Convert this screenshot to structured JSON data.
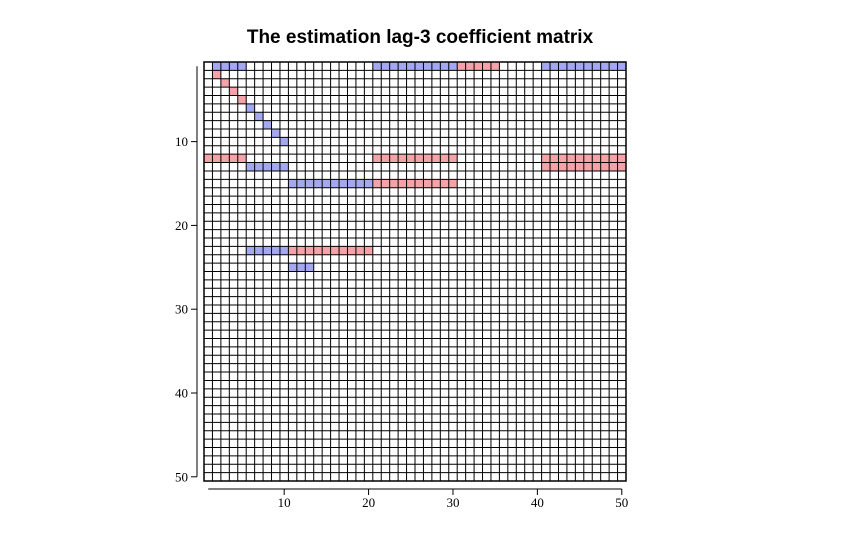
{
  "chart_data": {
    "type": "heatmap",
    "title": "The estimation lag-3 coefficient matrix",
    "xlabel": "",
    "ylabel": "",
    "rows": 50,
    "cols": 50,
    "xlim": [
      1,
      50
    ],
    "ylim": [
      1,
      50
    ],
    "y_axis_direction": "top-to-bottom",
    "x_ticks": [
      "10",
      "20",
      "30",
      "40",
      "50"
    ],
    "y_ticks": [
      "10",
      "20",
      "30",
      "40",
      "50"
    ],
    "grid": true,
    "cell_colors": {
      "positive": "#f5a3a8",
      "negative": "#a3a8f0",
      "zero": "#ffffff"
    },
    "cells": [
      {
        "row": 1,
        "col": 2,
        "sign": "negative"
      },
      {
        "row": 1,
        "col": 3,
        "sign": "negative"
      },
      {
        "row": 1,
        "col": 4,
        "sign": "negative"
      },
      {
        "row": 1,
        "col": 5,
        "sign": "negative"
      },
      {
        "row": 1,
        "col": 21,
        "sign": "negative"
      },
      {
        "row": 1,
        "col": 22,
        "sign": "negative"
      },
      {
        "row": 1,
        "col": 23,
        "sign": "negative"
      },
      {
        "row": 1,
        "col": 24,
        "sign": "negative"
      },
      {
        "row": 1,
        "col": 25,
        "sign": "negative"
      },
      {
        "row": 1,
        "col": 26,
        "sign": "negative"
      },
      {
        "row": 1,
        "col": 27,
        "sign": "negative"
      },
      {
        "row": 1,
        "col": 28,
        "sign": "negative"
      },
      {
        "row": 1,
        "col": 29,
        "sign": "negative"
      },
      {
        "row": 1,
        "col": 30,
        "sign": "negative"
      },
      {
        "row": 1,
        "col": 31,
        "sign": "positive"
      },
      {
        "row": 1,
        "col": 32,
        "sign": "positive"
      },
      {
        "row": 1,
        "col": 33,
        "sign": "positive"
      },
      {
        "row": 1,
        "col": 34,
        "sign": "positive"
      },
      {
        "row": 1,
        "col": 35,
        "sign": "positive"
      },
      {
        "row": 1,
        "col": 41,
        "sign": "negative"
      },
      {
        "row": 1,
        "col": 42,
        "sign": "negative"
      },
      {
        "row": 1,
        "col": 43,
        "sign": "negative"
      },
      {
        "row": 1,
        "col": 44,
        "sign": "negative"
      },
      {
        "row": 1,
        "col": 45,
        "sign": "negative"
      },
      {
        "row": 1,
        "col": 46,
        "sign": "negative"
      },
      {
        "row": 1,
        "col": 47,
        "sign": "negative"
      },
      {
        "row": 1,
        "col": 48,
        "sign": "negative"
      },
      {
        "row": 1,
        "col": 49,
        "sign": "negative"
      },
      {
        "row": 1,
        "col": 50,
        "sign": "negative"
      },
      {
        "row": 2,
        "col": 2,
        "sign": "positive"
      },
      {
        "row": 3,
        "col": 3,
        "sign": "positive"
      },
      {
        "row": 4,
        "col": 4,
        "sign": "positive"
      },
      {
        "row": 5,
        "col": 5,
        "sign": "positive"
      },
      {
        "row": 6,
        "col": 6,
        "sign": "negative"
      },
      {
        "row": 7,
        "col": 7,
        "sign": "negative"
      },
      {
        "row": 8,
        "col": 8,
        "sign": "negative"
      },
      {
        "row": 9,
        "col": 9,
        "sign": "negative"
      },
      {
        "row": 10,
        "col": 10,
        "sign": "negative"
      },
      {
        "row": 12,
        "col": 1,
        "sign": "positive"
      },
      {
        "row": 12,
        "col": 2,
        "sign": "positive"
      },
      {
        "row": 12,
        "col": 3,
        "sign": "positive"
      },
      {
        "row": 12,
        "col": 4,
        "sign": "positive"
      },
      {
        "row": 12,
        "col": 5,
        "sign": "positive"
      },
      {
        "row": 12,
        "col": 21,
        "sign": "positive"
      },
      {
        "row": 12,
        "col": 22,
        "sign": "positive"
      },
      {
        "row": 12,
        "col": 23,
        "sign": "positive"
      },
      {
        "row": 12,
        "col": 24,
        "sign": "positive"
      },
      {
        "row": 12,
        "col": 25,
        "sign": "positive"
      },
      {
        "row": 12,
        "col": 26,
        "sign": "positive"
      },
      {
        "row": 12,
        "col": 27,
        "sign": "positive"
      },
      {
        "row": 12,
        "col": 28,
        "sign": "positive"
      },
      {
        "row": 12,
        "col": 29,
        "sign": "positive"
      },
      {
        "row": 12,
        "col": 30,
        "sign": "positive"
      },
      {
        "row": 12,
        "col": 41,
        "sign": "positive"
      },
      {
        "row": 12,
        "col": 42,
        "sign": "positive"
      },
      {
        "row": 12,
        "col": 43,
        "sign": "positive"
      },
      {
        "row": 12,
        "col": 44,
        "sign": "positive"
      },
      {
        "row": 12,
        "col": 45,
        "sign": "positive"
      },
      {
        "row": 12,
        "col": 46,
        "sign": "positive"
      },
      {
        "row": 12,
        "col": 47,
        "sign": "positive"
      },
      {
        "row": 12,
        "col": 48,
        "sign": "positive"
      },
      {
        "row": 12,
        "col": 49,
        "sign": "positive"
      },
      {
        "row": 12,
        "col": 50,
        "sign": "positive"
      },
      {
        "row": 13,
        "col": 6,
        "sign": "negative"
      },
      {
        "row": 13,
        "col": 7,
        "sign": "negative"
      },
      {
        "row": 13,
        "col": 8,
        "sign": "negative"
      },
      {
        "row": 13,
        "col": 9,
        "sign": "negative"
      },
      {
        "row": 13,
        "col": 10,
        "sign": "negative"
      },
      {
        "row": 13,
        "col": 41,
        "sign": "positive"
      },
      {
        "row": 13,
        "col": 42,
        "sign": "positive"
      },
      {
        "row": 13,
        "col": 43,
        "sign": "positive"
      },
      {
        "row": 13,
        "col": 44,
        "sign": "positive"
      },
      {
        "row": 13,
        "col": 45,
        "sign": "positive"
      },
      {
        "row": 13,
        "col": 46,
        "sign": "positive"
      },
      {
        "row": 13,
        "col": 47,
        "sign": "positive"
      },
      {
        "row": 13,
        "col": 48,
        "sign": "positive"
      },
      {
        "row": 13,
        "col": 49,
        "sign": "positive"
      },
      {
        "row": 13,
        "col": 50,
        "sign": "positive"
      },
      {
        "row": 15,
        "col": 11,
        "sign": "negative"
      },
      {
        "row": 15,
        "col": 12,
        "sign": "negative"
      },
      {
        "row": 15,
        "col": 13,
        "sign": "negative"
      },
      {
        "row": 15,
        "col": 14,
        "sign": "negative"
      },
      {
        "row": 15,
        "col": 15,
        "sign": "negative"
      },
      {
        "row": 15,
        "col": 16,
        "sign": "negative"
      },
      {
        "row": 15,
        "col": 17,
        "sign": "negative"
      },
      {
        "row": 15,
        "col": 18,
        "sign": "negative"
      },
      {
        "row": 15,
        "col": 19,
        "sign": "negative"
      },
      {
        "row": 15,
        "col": 20,
        "sign": "negative"
      },
      {
        "row": 15,
        "col": 21,
        "sign": "positive"
      },
      {
        "row": 15,
        "col": 22,
        "sign": "positive"
      },
      {
        "row": 15,
        "col": 23,
        "sign": "positive"
      },
      {
        "row": 15,
        "col": 24,
        "sign": "positive"
      },
      {
        "row": 15,
        "col": 25,
        "sign": "positive"
      },
      {
        "row": 15,
        "col": 26,
        "sign": "positive"
      },
      {
        "row": 15,
        "col": 27,
        "sign": "positive"
      },
      {
        "row": 15,
        "col": 28,
        "sign": "positive"
      },
      {
        "row": 15,
        "col": 29,
        "sign": "positive"
      },
      {
        "row": 15,
        "col": 30,
        "sign": "positive"
      },
      {
        "row": 23,
        "col": 6,
        "sign": "negative"
      },
      {
        "row": 23,
        "col": 7,
        "sign": "negative"
      },
      {
        "row": 23,
        "col": 8,
        "sign": "negative"
      },
      {
        "row": 23,
        "col": 9,
        "sign": "negative"
      },
      {
        "row": 23,
        "col": 10,
        "sign": "negative"
      },
      {
        "row": 23,
        "col": 11,
        "sign": "positive"
      },
      {
        "row": 23,
        "col": 12,
        "sign": "positive"
      },
      {
        "row": 23,
        "col": 13,
        "sign": "positive"
      },
      {
        "row": 23,
        "col": 14,
        "sign": "positive"
      },
      {
        "row": 23,
        "col": 15,
        "sign": "positive"
      },
      {
        "row": 23,
        "col": 16,
        "sign": "positive"
      },
      {
        "row": 23,
        "col": 17,
        "sign": "positive"
      },
      {
        "row": 23,
        "col": 18,
        "sign": "positive"
      },
      {
        "row": 23,
        "col": 19,
        "sign": "positive"
      },
      {
        "row": 23,
        "col": 20,
        "sign": "positive"
      },
      {
        "row": 25,
        "col": 11,
        "sign": "negative"
      },
      {
        "row": 25,
        "col": 12,
        "sign": "negative"
      },
      {
        "row": 25,
        "col": 13,
        "sign": "negative"
      }
    ]
  }
}
